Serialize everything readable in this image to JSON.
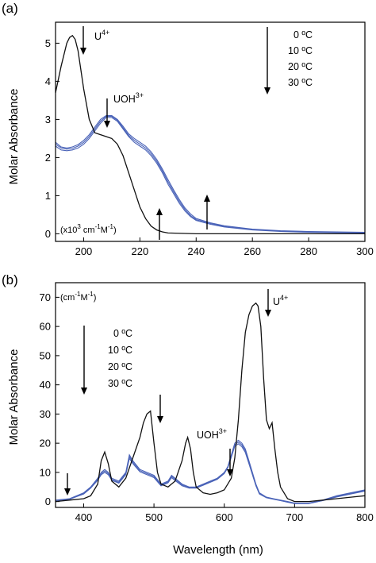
{
  "chart_data": [
    {
      "type": "line",
      "panel_label": "(a)",
      "ylabel": "Molar Absorbance",
      "xlabel": "",
      "xlim": [
        190,
        300
      ],
      "ylim": [
        -0.2,
        5.55
      ],
      "xticks": [
        200,
        220,
        240,
        260,
        280,
        300
      ],
      "yticks": [
        0,
        1,
        2,
        3,
        4,
        5
      ],
      "units_note": {
        "prefix": "(x10",
        "sup1": "3",
        "mid": " cm",
        "sup2": "-1",
        "suffix": "M",
        "sup3": "-1",
        "end": ")"
      },
      "species_labels": [
        {
          "base": "U",
          "sup": "4+"
        },
        {
          "base": "UOH",
          "sup": "3+"
        }
      ],
      "legend": [
        "0 ºC",
        "10 ºC",
        "20 ºC",
        "30 ºC"
      ],
      "series": [
        {
          "color": "#111111",
          "x": [
            190,
            192,
            194,
            195,
            196,
            197,
            198,
            200,
            202,
            204,
            206,
            208,
            210,
            212,
            214,
            216,
            218,
            220,
            222,
            224,
            226,
            228,
            230,
            235,
            240,
            250,
            260,
            280,
            300
          ],
          "y": [
            3.7,
            4.4,
            5.0,
            5.15,
            5.2,
            5.1,
            4.8,
            3.8,
            3.0,
            2.65,
            2.6,
            2.55,
            2.5,
            2.35,
            2.05,
            1.6,
            1.15,
            0.7,
            0.4,
            0.2,
            0.1,
            0.05,
            0.02,
            0.01,
            0,
            0,
            0,
            0,
            0
          ]
        },
        {
          "color": "#4a63b8",
          "x": [
            190,
            192,
            194,
            196,
            198,
            200,
            202,
            204,
            206,
            208,
            210,
            212,
            214,
            216,
            218,
            220,
            222,
            224,
            226,
            228,
            230,
            232,
            234,
            236,
            238,
            240,
            245,
            250,
            260,
            270,
            280,
            290,
            300
          ],
          "y": [
            2.3,
            2.2,
            2.18,
            2.2,
            2.25,
            2.35,
            2.5,
            2.7,
            2.9,
            3.05,
            3.05,
            2.95,
            2.75,
            2.55,
            2.4,
            2.3,
            2.2,
            2.05,
            1.85,
            1.6,
            1.3,
            1.05,
            0.8,
            0.6,
            0.45,
            0.35,
            0.25,
            0.18,
            0.1,
            0.06,
            0.04,
            0.03,
            0.02
          ]
        },
        {
          "color": "#4a63b8",
          "x": [
            190,
            192,
            194,
            196,
            198,
            200,
            202,
            204,
            206,
            208,
            210,
            212,
            214,
            216,
            218,
            220,
            222,
            224,
            226,
            228,
            230,
            232,
            234,
            236,
            238,
            240,
            245,
            250,
            260,
            270,
            280,
            290,
            300
          ],
          "y": [
            2.35,
            2.25,
            2.22,
            2.24,
            2.3,
            2.4,
            2.55,
            2.75,
            2.95,
            3.08,
            3.08,
            2.98,
            2.78,
            2.58,
            2.45,
            2.35,
            2.25,
            2.1,
            1.9,
            1.65,
            1.36,
            1.1,
            0.85,
            0.64,
            0.48,
            0.37,
            0.27,
            0.19,
            0.11,
            0.07,
            0.05,
            0.04,
            0.03
          ]
        },
        {
          "color": "#4a63b8",
          "x": [
            190,
            192,
            194,
            196,
            198,
            200,
            202,
            204,
            206,
            208,
            210,
            212,
            214,
            216,
            218,
            220,
            222,
            224,
            226,
            228,
            230,
            232,
            234,
            236,
            238,
            240,
            245,
            250,
            260,
            270,
            280,
            290,
            300
          ],
          "y": [
            2.4,
            2.28,
            2.25,
            2.28,
            2.34,
            2.45,
            2.6,
            2.8,
            3.0,
            3.1,
            3.1,
            3.0,
            2.82,
            2.62,
            2.5,
            2.4,
            2.3,
            2.15,
            1.95,
            1.7,
            1.42,
            1.15,
            0.9,
            0.68,
            0.52,
            0.4,
            0.29,
            0.21,
            0.12,
            0.08,
            0.06,
            0.05,
            0.04
          ]
        }
      ]
    },
    {
      "type": "line",
      "panel_label": "(b)",
      "ylabel": "Molar Absorbance",
      "xlabel": "Wavelength (nm)",
      "xlim": [
        360,
        800
      ],
      "ylim": [
        -2,
        75
      ],
      "xticks": [
        400,
        500,
        600,
        700,
        800
      ],
      "yticks": [
        0,
        10,
        20,
        30,
        40,
        50,
        60,
        70
      ],
      "units_note": {
        "prefix": "(cm",
        "sup1": "-1",
        "mid": "M",
        "sup2": "-1",
        "suffix": ")"
      },
      "species_labels": [
        {
          "base": "U",
          "sup": "4+"
        },
        {
          "base": "UOH",
          "sup": "3+"
        }
      ],
      "legend": [
        "0 ºC",
        "10 ºC",
        "20 ºC",
        "30 ºC"
      ],
      "series": [
        {
          "color": "#111111",
          "x": [
            360,
            380,
            400,
            410,
            420,
            425,
            430,
            435,
            440,
            450,
            460,
            470,
            480,
            485,
            490,
            495,
            500,
            505,
            510,
            520,
            530,
            540,
            545,
            548,
            552,
            556,
            560,
            570,
            580,
            590,
            600,
            610,
            615,
            620,
            625,
            630,
            635,
            640,
            645,
            648,
            652,
            656,
            660,
            664,
            668,
            672,
            676,
            680,
            690,
            700,
            720,
            740,
            760,
            780,
            800
          ],
          "y": [
            0,
            0.5,
            1,
            2,
            6,
            14,
            17,
            13,
            7,
            5,
            8,
            15,
            22,
            27,
            30,
            31,
            20,
            10,
            6,
            5,
            7,
            14,
            20,
            22,
            18,
            10,
            5,
            3,
            2.5,
            3,
            4,
            8,
            15,
            28,
            45,
            58,
            64,
            67,
            68,
            67,
            60,
            42,
            28,
            25,
            27,
            18,
            10,
            5,
            1,
            0,
            0,
            0.5,
            1,
            1.5,
            2
          ]
        },
        {
          "color": "#4a63b8",
          "x": [
            360,
            380,
            400,
            410,
            420,
            425,
            430,
            435,
            440,
            450,
            460,
            465,
            470,
            480,
            490,
            500,
            510,
            520,
            525,
            530,
            540,
            550,
            560,
            570,
            580,
            590,
            600,
            605,
            610,
            615,
            620,
            625,
            630,
            635,
            640,
            645,
            650,
            660,
            670,
            680,
            690,
            700,
            720,
            740,
            760,
            780,
            800
          ],
          "y": [
            0.5,
            1,
            3,
            5,
            8,
            10,
            11,
            10,
            8,
            7,
            10,
            16,
            14,
            11,
            10,
            9,
            6,
            7,
            9,
            8,
            6,
            5,
            5,
            6,
            7,
            8,
            10,
            12,
            16,
            20,
            21,
            20,
            18,
            14,
            10,
            6,
            3,
            1.5,
            1,
            0.5,
            0,
            -0.5,
            -0.5,
            0.5,
            2,
            3,
            4
          ]
        },
        {
          "color": "#4a63b8",
          "x": [
            360,
            380,
            400,
            410,
            420,
            425,
            430,
            435,
            440,
            450,
            460,
            465,
            470,
            480,
            490,
            500,
            510,
            520,
            525,
            530,
            540,
            550,
            560,
            570,
            580,
            590,
            600,
            605,
            610,
            615,
            620,
            625,
            630,
            635,
            640,
            645,
            650,
            660,
            670,
            680,
            690,
            700,
            720,
            740,
            760,
            780,
            800
          ],
          "y": [
            0.4,
            0.9,
            2.8,
            4.8,
            7.6,
            9.6,
            10.5,
            9.6,
            7.6,
            6.6,
            9.6,
            15.4,
            13.5,
            10.6,
            9.6,
            8.6,
            5.7,
            6.7,
            8.6,
            7.6,
            5.7,
            4.8,
            4.8,
            5.8,
            6.8,
            7.8,
            9.8,
            11.8,
            15.6,
            19.5,
            20.4,
            19.4,
            17.4,
            13.5,
            9.6,
            5.7,
            2.8,
            1.4,
            0.9,
            0.4,
            -0.1,
            -0.6,
            -0.6,
            0.4,
            1.8,
            2.8,
            3.8
          ]
        },
        {
          "color": "#4a63b8",
          "x": [
            360,
            380,
            400,
            410,
            420,
            425,
            430,
            435,
            440,
            450,
            460,
            465,
            470,
            480,
            490,
            500,
            510,
            520,
            525,
            530,
            540,
            550,
            560,
            570,
            580,
            590,
            600,
            605,
            610,
            615,
            620,
            625,
            630,
            635,
            640,
            645,
            650,
            660,
            670,
            680,
            690,
            700,
            720,
            740,
            760,
            780,
            800
          ],
          "y": [
            0.3,
            0.8,
            2.6,
            4.6,
            7.3,
            9.2,
            10,
            9.2,
            7.3,
            6.3,
            9.2,
            14.8,
            13,
            10.2,
            9.2,
            8.2,
            5.4,
            6.4,
            8.2,
            7.2,
            5.4,
            4.6,
            4.6,
            5.6,
            6.6,
            7.6,
            9.6,
            11.6,
            15.2,
            19,
            19.8,
            18.8,
            16.8,
            13,
            9.2,
            5.4,
            2.6,
            1.3,
            0.8,
            0.3,
            -0.2,
            -0.7,
            -0.7,
            0.3,
            1.6,
            2.6,
            3.6
          ]
        }
      ]
    }
  ]
}
